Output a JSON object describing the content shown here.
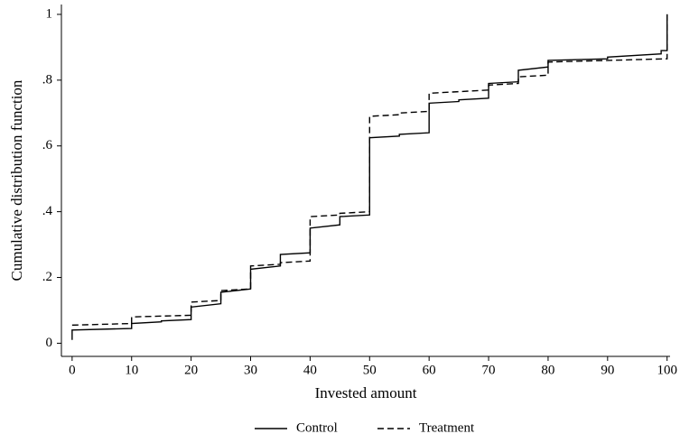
{
  "chart_data": {
    "type": "line",
    "x_label": "Invested amount",
    "y_label": "Cumulative distribution function",
    "xlim": [
      -1.8,
      100.5
    ],
    "ylim": [
      -0.04,
      1.03
    ],
    "xticks": [
      0,
      10,
      20,
      30,
      40,
      50,
      60,
      70,
      80,
      90,
      100
    ],
    "yticks": [
      0,
      {
        "value": 0.2,
        "label": ".2"
      },
      {
        "value": 0.4,
        "label": ".4"
      },
      {
        "value": 0.6,
        "label": ".6"
      },
      {
        "value": 0.8,
        "label": ".8"
      },
      1
    ],
    "grid": false,
    "legend": "bottom",
    "series": [
      {
        "name": "Control",
        "color": "#000000",
        "line_style": "solid",
        "x": [
          0,
          0,
          10,
          10,
          15,
          15,
          20,
          20,
          25,
          25,
          30,
          30,
          35,
          35,
          40,
          40,
          45,
          45,
          50,
          50,
          55,
          55,
          60,
          60,
          65,
          65,
          70,
          70,
          75,
          75,
          80,
          80,
          90,
          90,
          99,
          99,
          100,
          100
        ],
        "values": [
          0.01,
          0.04,
          0.045,
          0.06,
          0.065,
          0.068,
          0.072,
          0.11,
          0.12,
          0.155,
          0.165,
          0.225,
          0.235,
          0.27,
          0.275,
          0.35,
          0.36,
          0.385,
          0.39,
          0.625,
          0.63,
          0.635,
          0.64,
          0.73,
          0.735,
          0.74,
          0.745,
          0.79,
          0.795,
          0.83,
          0.84,
          0.86,
          0.865,
          0.87,
          0.88,
          0.89,
          0.89,
          1.0
        ]
      },
      {
        "name": "Treatment",
        "color": "#000000",
        "line_style": "dashed",
        "x": [
          0,
          10,
          10,
          20,
          20,
          25,
          25,
          30,
          30,
          35,
          35,
          40,
          40,
          45,
          45,
          50,
          50,
          55,
          55,
          60,
          60,
          70,
          70,
          75,
          75,
          80,
          80,
          100,
          100
        ],
        "values": [
          0.055,
          0.06,
          0.08,
          0.085,
          0.125,
          0.13,
          0.16,
          0.165,
          0.235,
          0.24,
          0.245,
          0.25,
          0.385,
          0.39,
          0.395,
          0.4,
          0.69,
          0.695,
          0.7,
          0.705,
          0.76,
          0.77,
          0.785,
          0.79,
          0.81,
          0.815,
          0.855,
          0.865,
          1.0
        ]
      }
    ]
  }
}
